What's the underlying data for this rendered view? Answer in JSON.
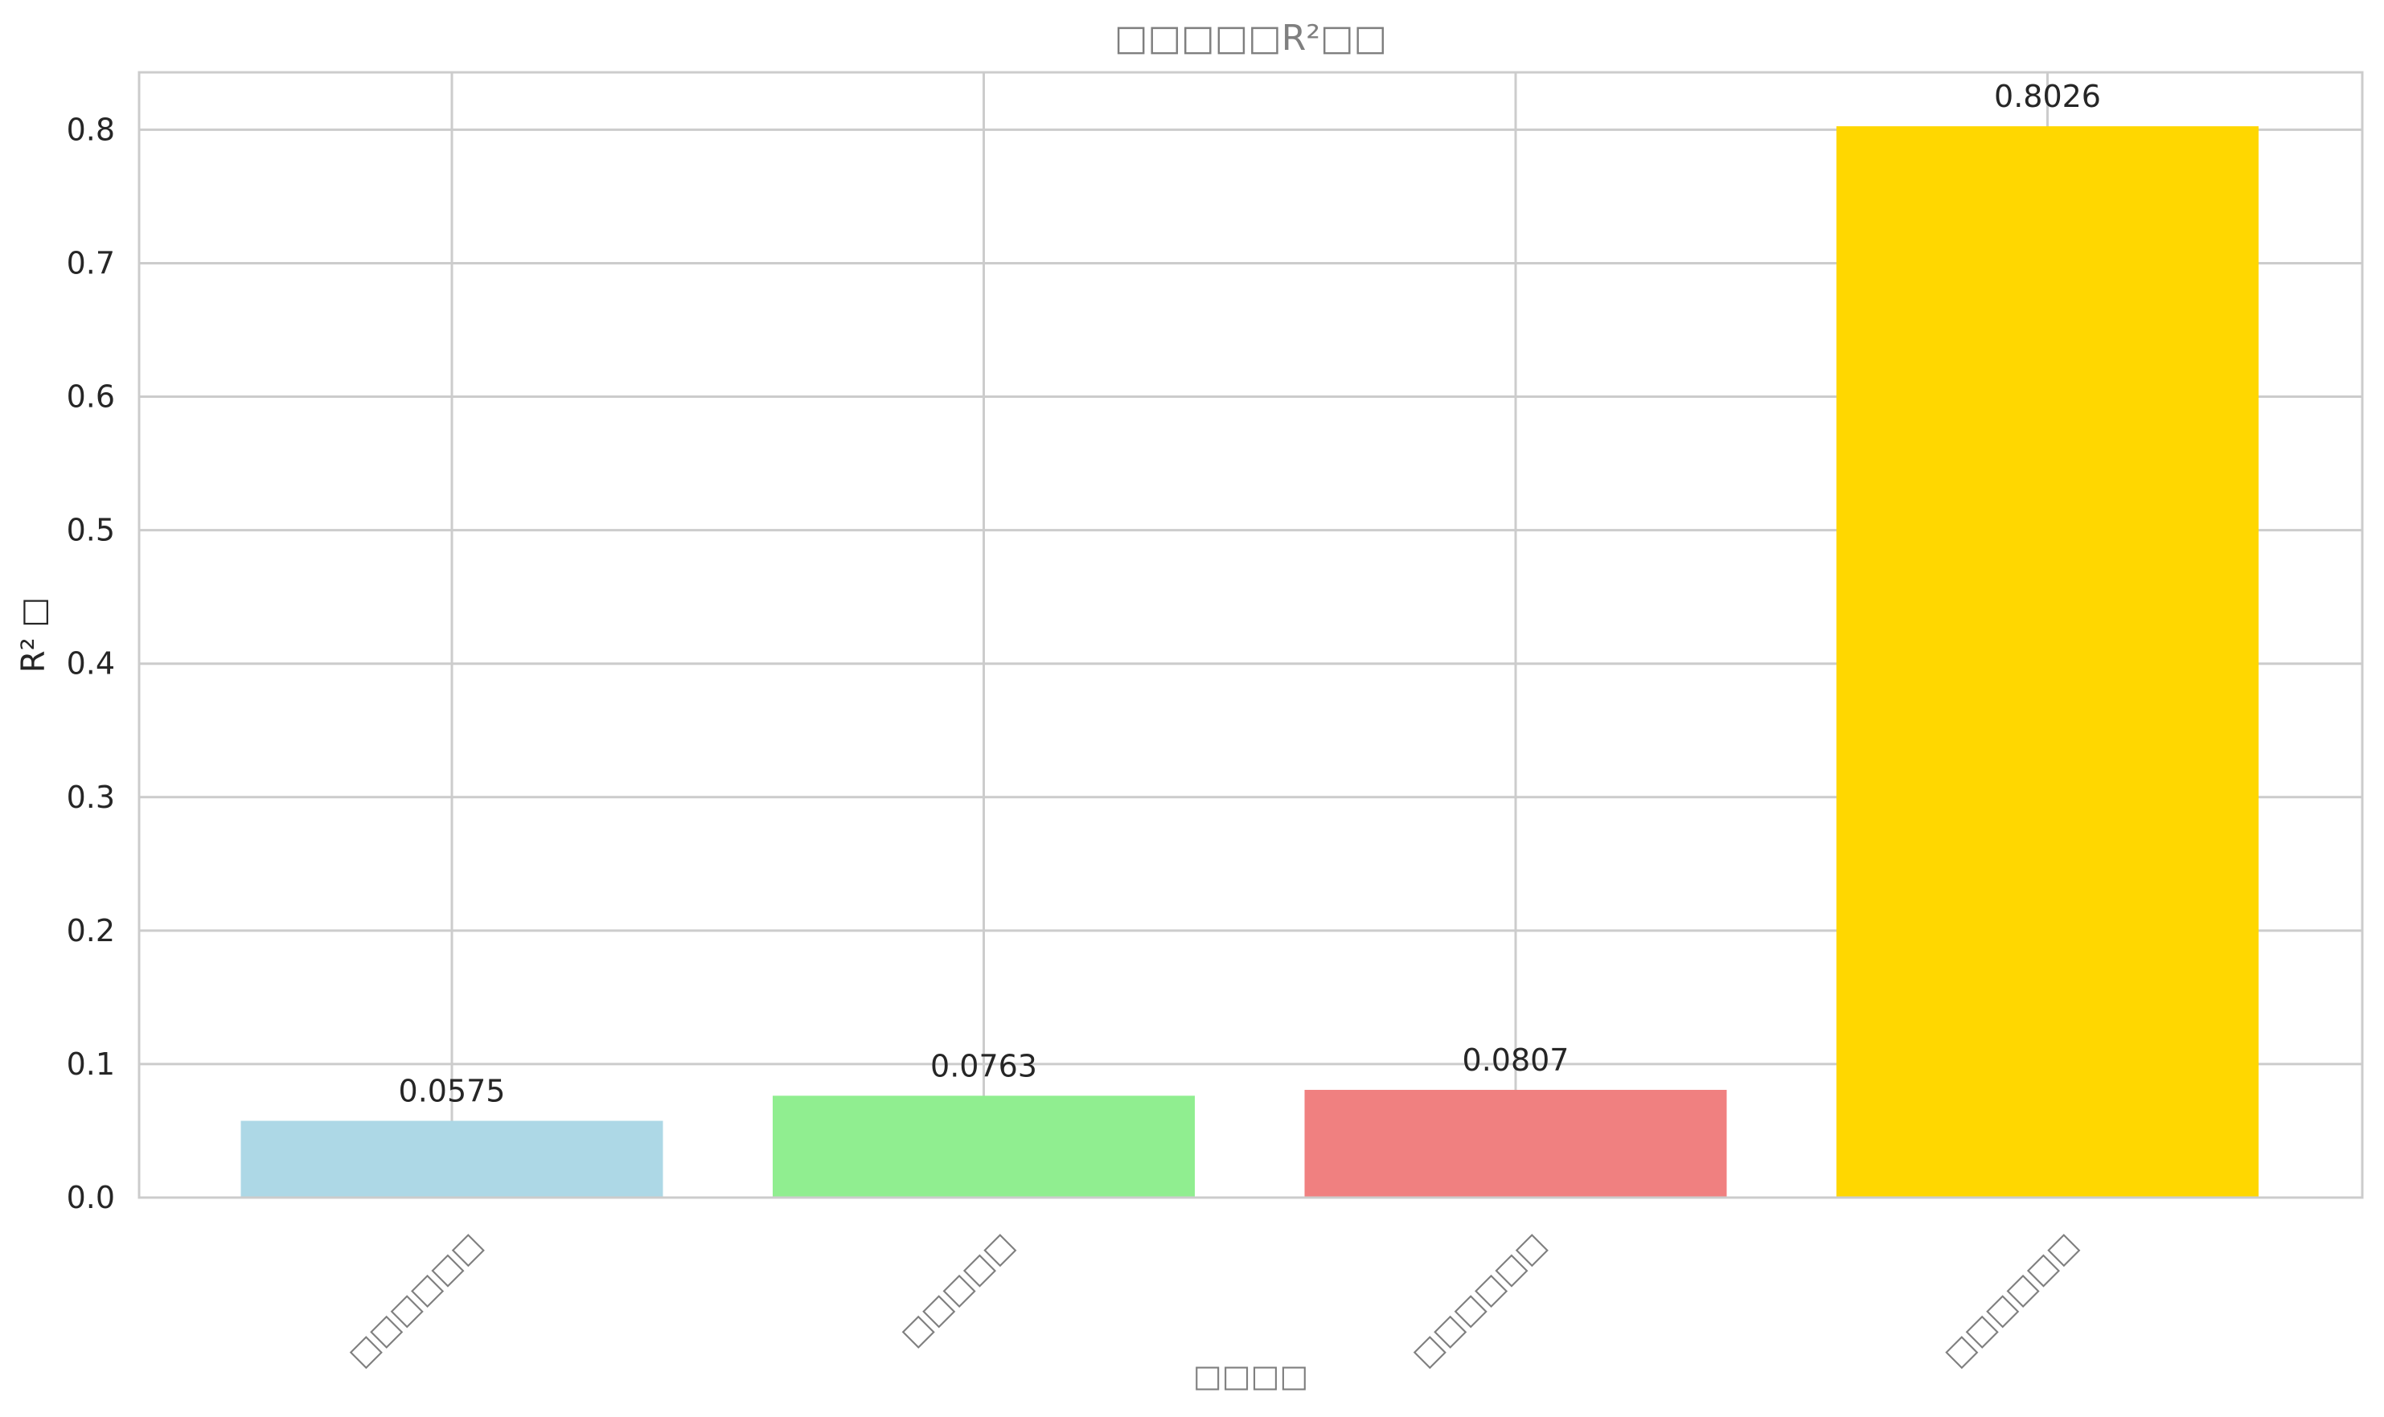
{
  "chart_data": {
    "type": "bar",
    "title": "□□□□□R²□□",
    "xlabel": "□□□□",
    "ylabel": "R² □",
    "categories": [
      "□□□□□□",
      "□□□□□",
      "□□□□□□",
      "□□□□□□"
    ],
    "values": [
      0.0575,
      0.0763,
      0.0807,
      0.8026
    ],
    "value_labels": [
      "0.0575",
      "0.0763",
      "0.0807",
      "0.8026"
    ],
    "colors": [
      "#add8e6",
      "#90ee90",
      "#f08080",
      "#ffd700"
    ],
    "ylim": [
      0,
      0.843
    ],
    "yticks": [
      0.0,
      0.1,
      0.2,
      0.3,
      0.4,
      0.5,
      0.6,
      0.7,
      0.8
    ],
    "ytick_labels": [
      "0.0",
      "0.1",
      "0.2",
      "0.3",
      "0.4",
      "0.5",
      "0.6",
      "0.7",
      "0.8"
    ],
    "grid": true,
    "legend": "none"
  }
}
